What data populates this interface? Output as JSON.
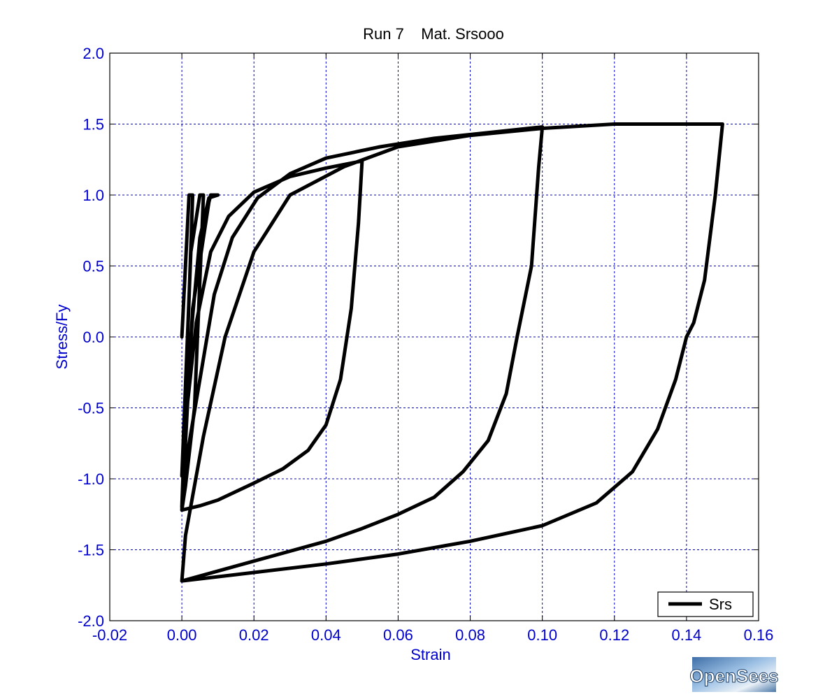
{
  "chart_data": {
    "type": "line",
    "title": "Run 7    Mat. Srsooo",
    "xlabel": "Strain",
    "ylabel": "Stress/Fy",
    "xlim": [
      -0.02,
      0.16
    ],
    "ylim": [
      -2.0,
      2.0
    ],
    "xticks": [
      "-0.02",
      "0.00",
      "0.02",
      "0.04",
      "0.06",
      "0.08",
      "0.10",
      "0.12",
      "0.14",
      "0.16"
    ],
    "yticks": [
      "2.0",
      "1.5",
      "1.0",
      "0.5",
      "0.0",
      "-0.5",
      "-1.0",
      "-1.5",
      "-2.0"
    ],
    "grid": true,
    "legend": {
      "position": "bottom-right",
      "entries": [
        "Srs"
      ]
    },
    "series": [
      {
        "name": "Srs",
        "color": "#000000",
        "x": [
          0.0,
          0.002,
          0.003,
          0.0005,
          0.0,
          0.0025,
          0.005,
          0.006,
          0.0035,
          0.001,
          0.0,
          0.003,
          0.006,
          0.0075,
          0.008,
          0.0095,
          0.01,
          0.0075,
          0.005,
          0.003,
          0.001,
          0.0,
          0.001,
          0.004,
          0.008,
          0.013,
          0.02,
          0.03,
          0.04,
          0.05,
          0.049,
          0.047,
          0.044,
          0.04,
          0.035,
          0.028,
          0.02,
          0.01,
          0.005,
          0.0,
          0.001,
          0.005,
          0.009,
          0.014,
          0.021,
          0.03,
          0.04,
          0.055,
          0.07,
          0.085,
          0.1,
          0.099,
          0.097,
          0.093,
          0.09,
          0.085,
          0.078,
          0.07,
          0.06,
          0.05,
          0.04,
          0.02,
          0.0,
          0.001,
          0.006,
          0.012,
          0.02,
          0.03,
          0.045,
          0.06,
          0.08,
          0.1,
          0.12,
          0.15,
          0.148,
          0.145,
          0.142,
          0.14,
          0.137,
          0.132,
          0.125,
          0.115,
          0.1,
          0.08,
          0.06,
          0.04,
          0.02,
          0.0
        ],
        "y": [
          0.0,
          1.0,
          1.0,
          -0.8,
          -0.98,
          0.6,
          1.0,
          1.0,
          -0.5,
          -1.05,
          -1.22,
          0.2,
          0.7,
          0.95,
          1.0,
          1.0,
          1.0,
          0.98,
          0.7,
          0.15,
          -0.5,
          -1.2,
          -0.6,
          0.1,
          0.6,
          0.85,
          1.02,
          1.13,
          1.19,
          1.24,
          0.8,
          0.2,
          -0.3,
          -0.62,
          -0.8,
          -0.93,
          -1.03,
          -1.15,
          -1.19,
          -1.22,
          -0.9,
          -0.3,
          0.3,
          0.7,
          0.98,
          1.15,
          1.26,
          1.34,
          1.4,
          1.44,
          1.48,
          1.2,
          0.5,
          0.0,
          -0.4,
          -0.73,
          -0.95,
          -1.13,
          -1.25,
          -1.35,
          -1.44,
          -1.58,
          -1.72,
          -1.4,
          -0.7,
          0.0,
          0.6,
          1.0,
          1.2,
          1.34,
          1.42,
          1.47,
          1.5,
          1.5,
          1.0,
          0.4,
          0.1,
          0.0,
          -0.3,
          -0.65,
          -0.95,
          -1.17,
          -1.33,
          -1.44,
          -1.53,
          -1.6,
          -1.66,
          -1.72
        ]
      }
    ]
  },
  "logo": {
    "text": "OpenSees"
  }
}
